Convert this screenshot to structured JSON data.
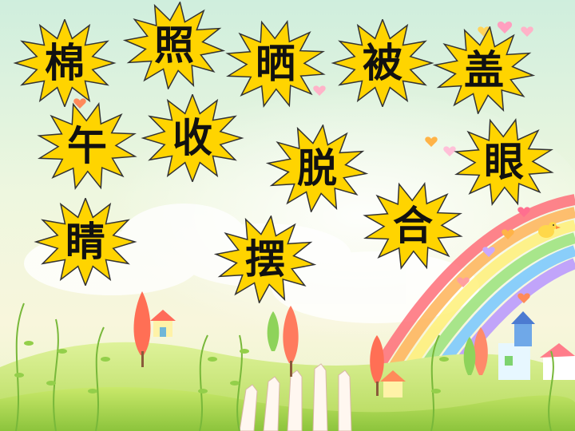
{
  "colors": {
    "sky_top": "#d9f0e2",
    "sky_mid": "#f4f8dc",
    "star_fill": "#ffd400",
    "star_stroke": "#333333",
    "text": "#111111",
    "grass": "#a9d64a",
    "rainbow": [
      "#ff5f6d",
      "#ffb347",
      "#fff275",
      "#8ee07a",
      "#6ec6ff",
      "#b18cff"
    ]
  },
  "characters": [
    {
      "id": "mian",
      "char": "棉"
    },
    {
      "id": "zhao",
      "char": "照"
    },
    {
      "id": "shai",
      "char": "晒"
    },
    {
      "id": "bei",
      "char": "被"
    },
    {
      "id": "gai",
      "char": "盖"
    },
    {
      "id": "wu",
      "char": "午"
    },
    {
      "id": "shou",
      "char": "收"
    },
    {
      "id": "tuo",
      "char": "脱"
    },
    {
      "id": "yan",
      "char": "眼"
    },
    {
      "id": "qing",
      "char": "睛"
    },
    {
      "id": "bai",
      "char": "摆"
    },
    {
      "id": "he",
      "char": "合"
    }
  ]
}
